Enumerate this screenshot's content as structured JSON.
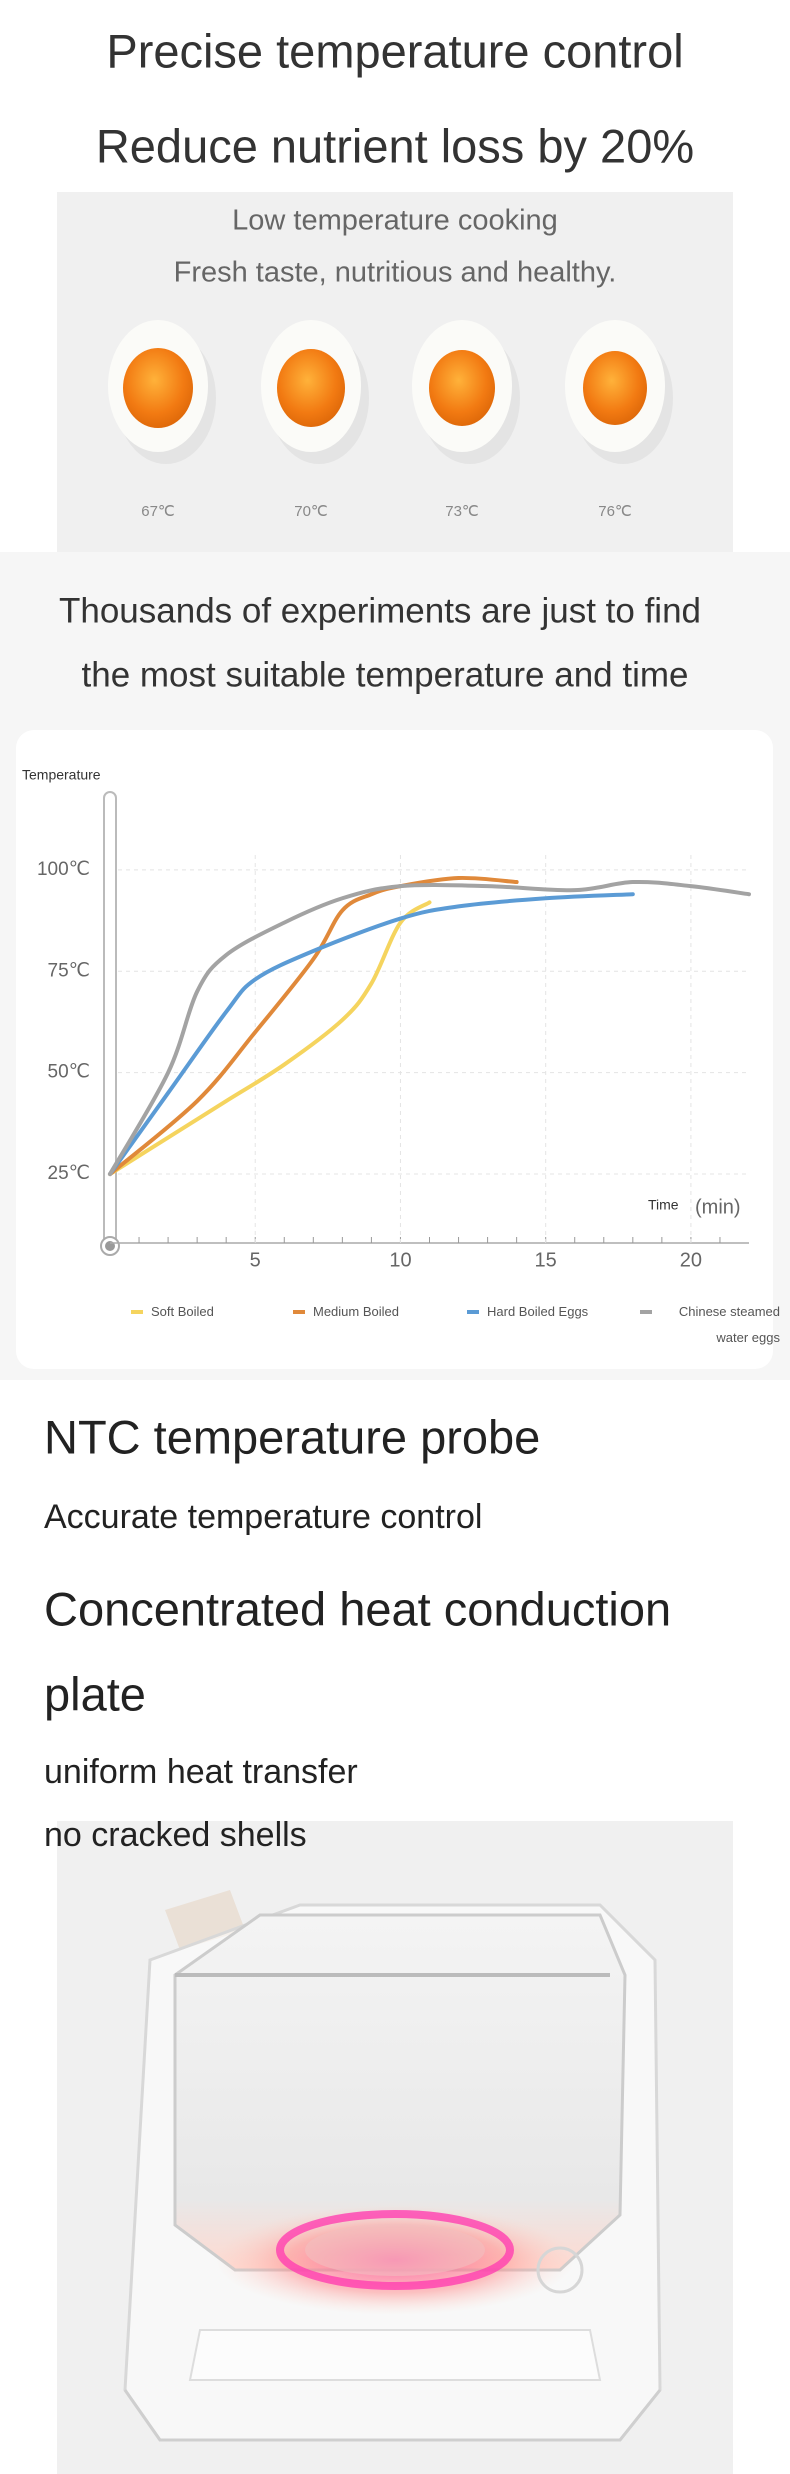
{
  "header": {
    "lines": [
      "Precise temperature control",
      "Reduce nutrient loss by 20%"
    ]
  },
  "low_temp": {
    "lines": [
      "Low temperature cooking",
      "Fresh taste, nutritious and healthy."
    ],
    "eggs": [
      "67℃",
      "70℃",
      "73℃",
      "76℃"
    ]
  },
  "experiments": {
    "lines": [
      "Thousands of experiments are just to find",
      "the most suitable temperature and time"
    ]
  },
  "chart_data": {
    "type": "line",
    "y_label": "Temperature",
    "x_label": "Time",
    "x_unit": "(min)",
    "xlim": [
      0,
      22
    ],
    "ylim": [
      8,
      116
    ],
    "xticks": [
      5,
      10,
      15,
      20
    ],
    "yticks": [
      {
        "value": 25,
        "label": "25℃"
      },
      {
        "value": 50,
        "label": "50℃"
      },
      {
        "value": 75,
        "label": "75℃"
      },
      {
        "value": 100,
        "label": "100℃"
      }
    ],
    "grid": true,
    "legend": "bottom",
    "series": [
      {
        "name": "Soft Boiled",
        "color": "#f5d45e",
        "x": [
          0,
          2,
          4,
          6,
          8,
          9,
          10,
          11
        ],
        "values": [
          25,
          34,
          43,
          52,
          63,
          72,
          87,
          92
        ]
      },
      {
        "name": "Medium Boiled",
        "color": "#e0893a",
        "x": [
          0,
          3,
          5,
          7,
          8,
          9,
          10,
          12,
          14
        ],
        "values": [
          25,
          43,
          60,
          78,
          90,
          94,
          96,
          98,
          97
        ]
      },
      {
        "name": "Hard Boiled Eggs",
        "color": "#5b9bd5",
        "x": [
          0,
          2,
          4,
          5,
          7,
          10,
          12,
          15,
          18
        ],
        "values": [
          25,
          45,
          65,
          73,
          80,
          88,
          91,
          93,
          94
        ]
      },
      {
        "name": "Chinese steamed water eggs",
        "color": "#a3a3a3",
        "x": [
          0,
          2,
          3,
          4,
          6,
          8,
          10,
          13,
          16,
          18,
          20,
          22
        ],
        "values": [
          25,
          50,
          70,
          79,
          87,
          93,
          96,
          96,
          95,
          97,
          96,
          94
        ]
      }
    ]
  },
  "features": [
    {
      "title": "NTC temperature probe",
      "lines": [
        "Accurate temperature control"
      ]
    },
    {
      "title_lines": [
        "Concentrated heat conduction",
        "plate"
      ],
      "lines": [
        "uniform heat transfer",
        "no cracked shells"
      ]
    }
  ]
}
